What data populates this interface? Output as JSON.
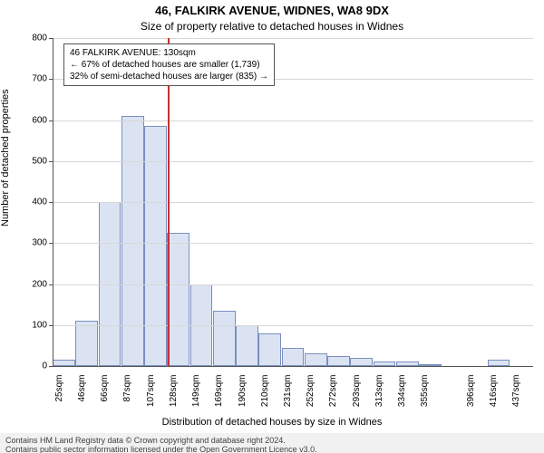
{
  "chart": {
    "type": "histogram",
    "title": "46, FALKIRK AVENUE, WIDNES, WA8 9DX",
    "subtitle": "Size of property relative to detached houses in Widnes",
    "ylabel": "Number of detached properties",
    "xlabel": "Distribution of detached houses by size in Widnes",
    "background_color": "#ffffff",
    "grid_color": "#d7d7d7",
    "axis_color": "#555555",
    "bar_fill": "#dbe3f3",
    "bar_border": "#7a8ebf",
    "marker_color": "#c43131",
    "yticks": [
      0,
      100,
      200,
      300,
      400,
      500,
      600,
      700,
      800
    ],
    "ylim_max": 800,
    "xtick_labels": [
      "25sqm",
      "46sqm",
      "66sqm",
      "87sqm",
      "107sqm",
      "128sqm",
      "149sqm",
      "169sqm",
      "190sqm",
      "210sqm",
      "231sqm",
      "252sqm",
      "272sqm",
      "293sqm",
      "313sqm",
      "334sqm",
      "355sqm",
      "",
      "396sqm",
      "416sqm",
      "437sqm"
    ],
    "bar_values": [
      15,
      110,
      400,
      610,
      585,
      325,
      200,
      135,
      100,
      80,
      45,
      30,
      25,
      20,
      10,
      10,
      5,
      0,
      0,
      15,
      0
    ],
    "marker_bin_index": 5,
    "annotation": {
      "line1": "46 FALKIRK AVENUE: 130sqm",
      "line2": "← 67% of detached houses are smaller (1,739)",
      "line3": "32% of semi-detached houses are larger (835) →"
    },
    "footer_line1": "Contains HM Land Registry data © Crown copyright and database right 2024.",
    "footer_line2": "Contains public sector information licensed under the Open Government Licence v3.0."
  }
}
